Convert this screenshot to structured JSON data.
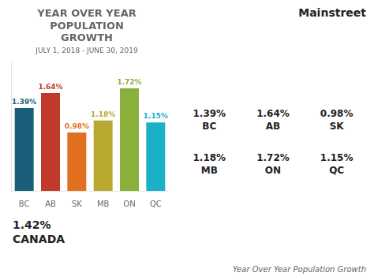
{
  "chart_data": {
    "type": "bar",
    "title": "YEAR OVER YEAR\nPOPULATION\nGROWTH",
    "subtitle": "JULY 1, 2018 - JUNE 30, 2019",
    "categories": [
      "BC",
      "AB",
      "SK",
      "MB",
      "ON",
      "QC"
    ],
    "values": [
      1.39,
      1.64,
      0.98,
      1.18,
      1.72,
      1.15
    ],
    "value_labels": [
      "1.39%",
      "1.64%",
      "0.98%",
      "1.18%",
      "1.72%",
      "1.15%"
    ],
    "colors": [
      "#1a5f7a",
      "#c0392b",
      "#e07020",
      "#b8a830",
      "#8aaf3a",
      "#1ab0c8"
    ],
    "data_labels": true,
    "ylim": [
      0,
      2.15
    ],
    "tick_labels": "x",
    "grid": false,
    "annotations": [
      "1.42%",
      "CANADA",
      "Mainstreet",
      "1.39%\nBC",
      "1.64%\nAB",
      "0.98%\nSK",
      "1.18%\nMB",
      "1.72%\nON",
      "1.15%\nQC",
      "Year Over Year Population Growth"
    ]
  }
}
